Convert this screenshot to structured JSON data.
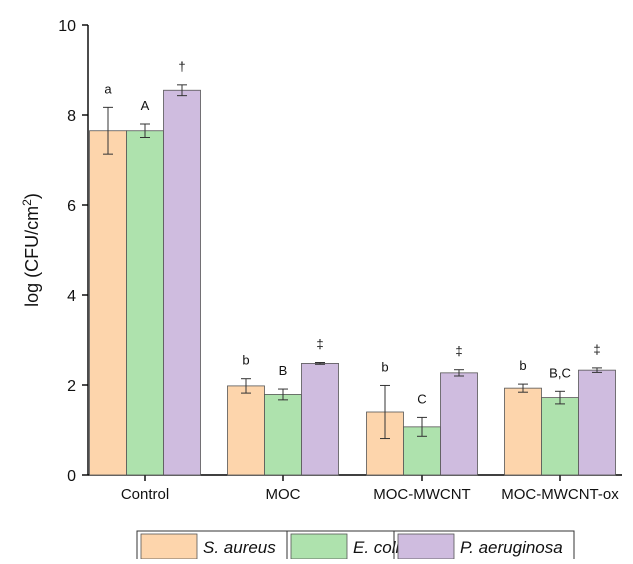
{
  "chart_data": {
    "type": "bar",
    "categories": [
      "Control",
      "MOC",
      "MOC-MWCNT",
      "MOC-MWCNT-ox"
    ],
    "ylabel_main": "log (CFU/cm",
    "ylabel_sup": "2",
    "ylabel_close": ")",
    "ylim": [
      0,
      10
    ],
    "yticks": [
      0,
      2,
      4,
      6,
      8,
      10
    ],
    "grid": false,
    "legend_position": "bottom-center",
    "series": [
      {
        "name": "S. aureus",
        "color": "#fdd5ac",
        "values": [
          7.65,
          1.98,
          1.4,
          1.93
        ],
        "errors": [
          0.52,
          0.16,
          0.59,
          0.09
        ],
        "labels": [
          "a",
          "b",
          "b",
          "b"
        ]
      },
      {
        "name": "E. coli",
        "color": "#aee2ad",
        "values": [
          7.65,
          1.79,
          1.07,
          1.72
        ],
        "errors": [
          0.15,
          0.12,
          0.21,
          0.14
        ],
        "labels": [
          "A",
          "B",
          "C",
          "B,C"
        ]
      },
      {
        "name": "P. aeruginosa",
        "color": "#cfbcdf",
        "values": [
          8.55,
          2.48,
          2.27,
          2.33
        ],
        "errors": [
          0.12,
          0.02,
          0.07,
          0.05
        ],
        "labels": [
          "†",
          "‡",
          "‡",
          "‡"
        ]
      }
    ]
  }
}
